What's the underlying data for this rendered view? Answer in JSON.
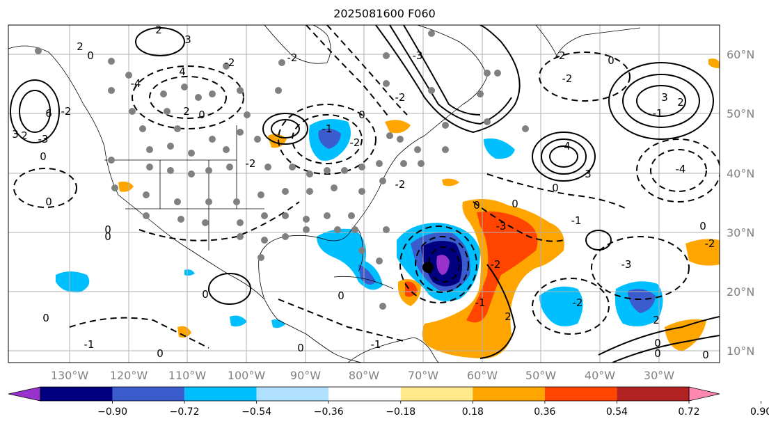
{
  "title": "2025081600 F060",
  "longitude_labels": [
    "130°W",
    "120°W",
    "110°W",
    "100°W",
    "90°W",
    "80°W",
    "70°W",
    "60°W",
    "50°W",
    "40°W",
    "30°W"
  ],
  "latitude_labels": [
    "60°N",
    "50°N",
    "40°N",
    "30°N",
    "20°N",
    "10°N"
  ],
  "colorbar": {
    "tick_labels": [
      "−0.90",
      "−0.72",
      "−0.54",
      "−0.36",
      "−0.18",
      "0.18",
      "0.36",
      "0.54",
      "0.72",
      "0.90"
    ],
    "colors": [
      "#9932cc",
      "#000080",
      "#3a5ccc",
      "#00bfff",
      "#b0e0ff",
      "#ffffff",
      "#ffe98a",
      "#ffa500",
      "#ff4500",
      "#b22222",
      "#ff88b0"
    ]
  },
  "contour_labels": [
    "2",
    "3",
    "2",
    "0",
    "-2",
    "2",
    "0",
    "-2",
    "-4",
    "6",
    "2",
    "0",
    "-3",
    "3",
    "4",
    "-2",
    "-1",
    "0",
    "-2",
    "-3",
    "4",
    "3",
    "-1",
    "-4",
    "0",
    "3",
    "-2",
    "-2",
    "0",
    "2",
    "0",
    "-1",
    "-2",
    "-3",
    "-3",
    "0",
    "-2",
    "0",
    "0",
    "0",
    "-2",
    "-2",
    "-2",
    "-1",
    "-1",
    "0",
    "0",
    "0",
    "2",
    "2",
    "0",
    "0",
    "-1",
    "0",
    "0",
    "-2",
    "0",
    "0"
  ],
  "markers": {
    "center_label": ""
  }
}
